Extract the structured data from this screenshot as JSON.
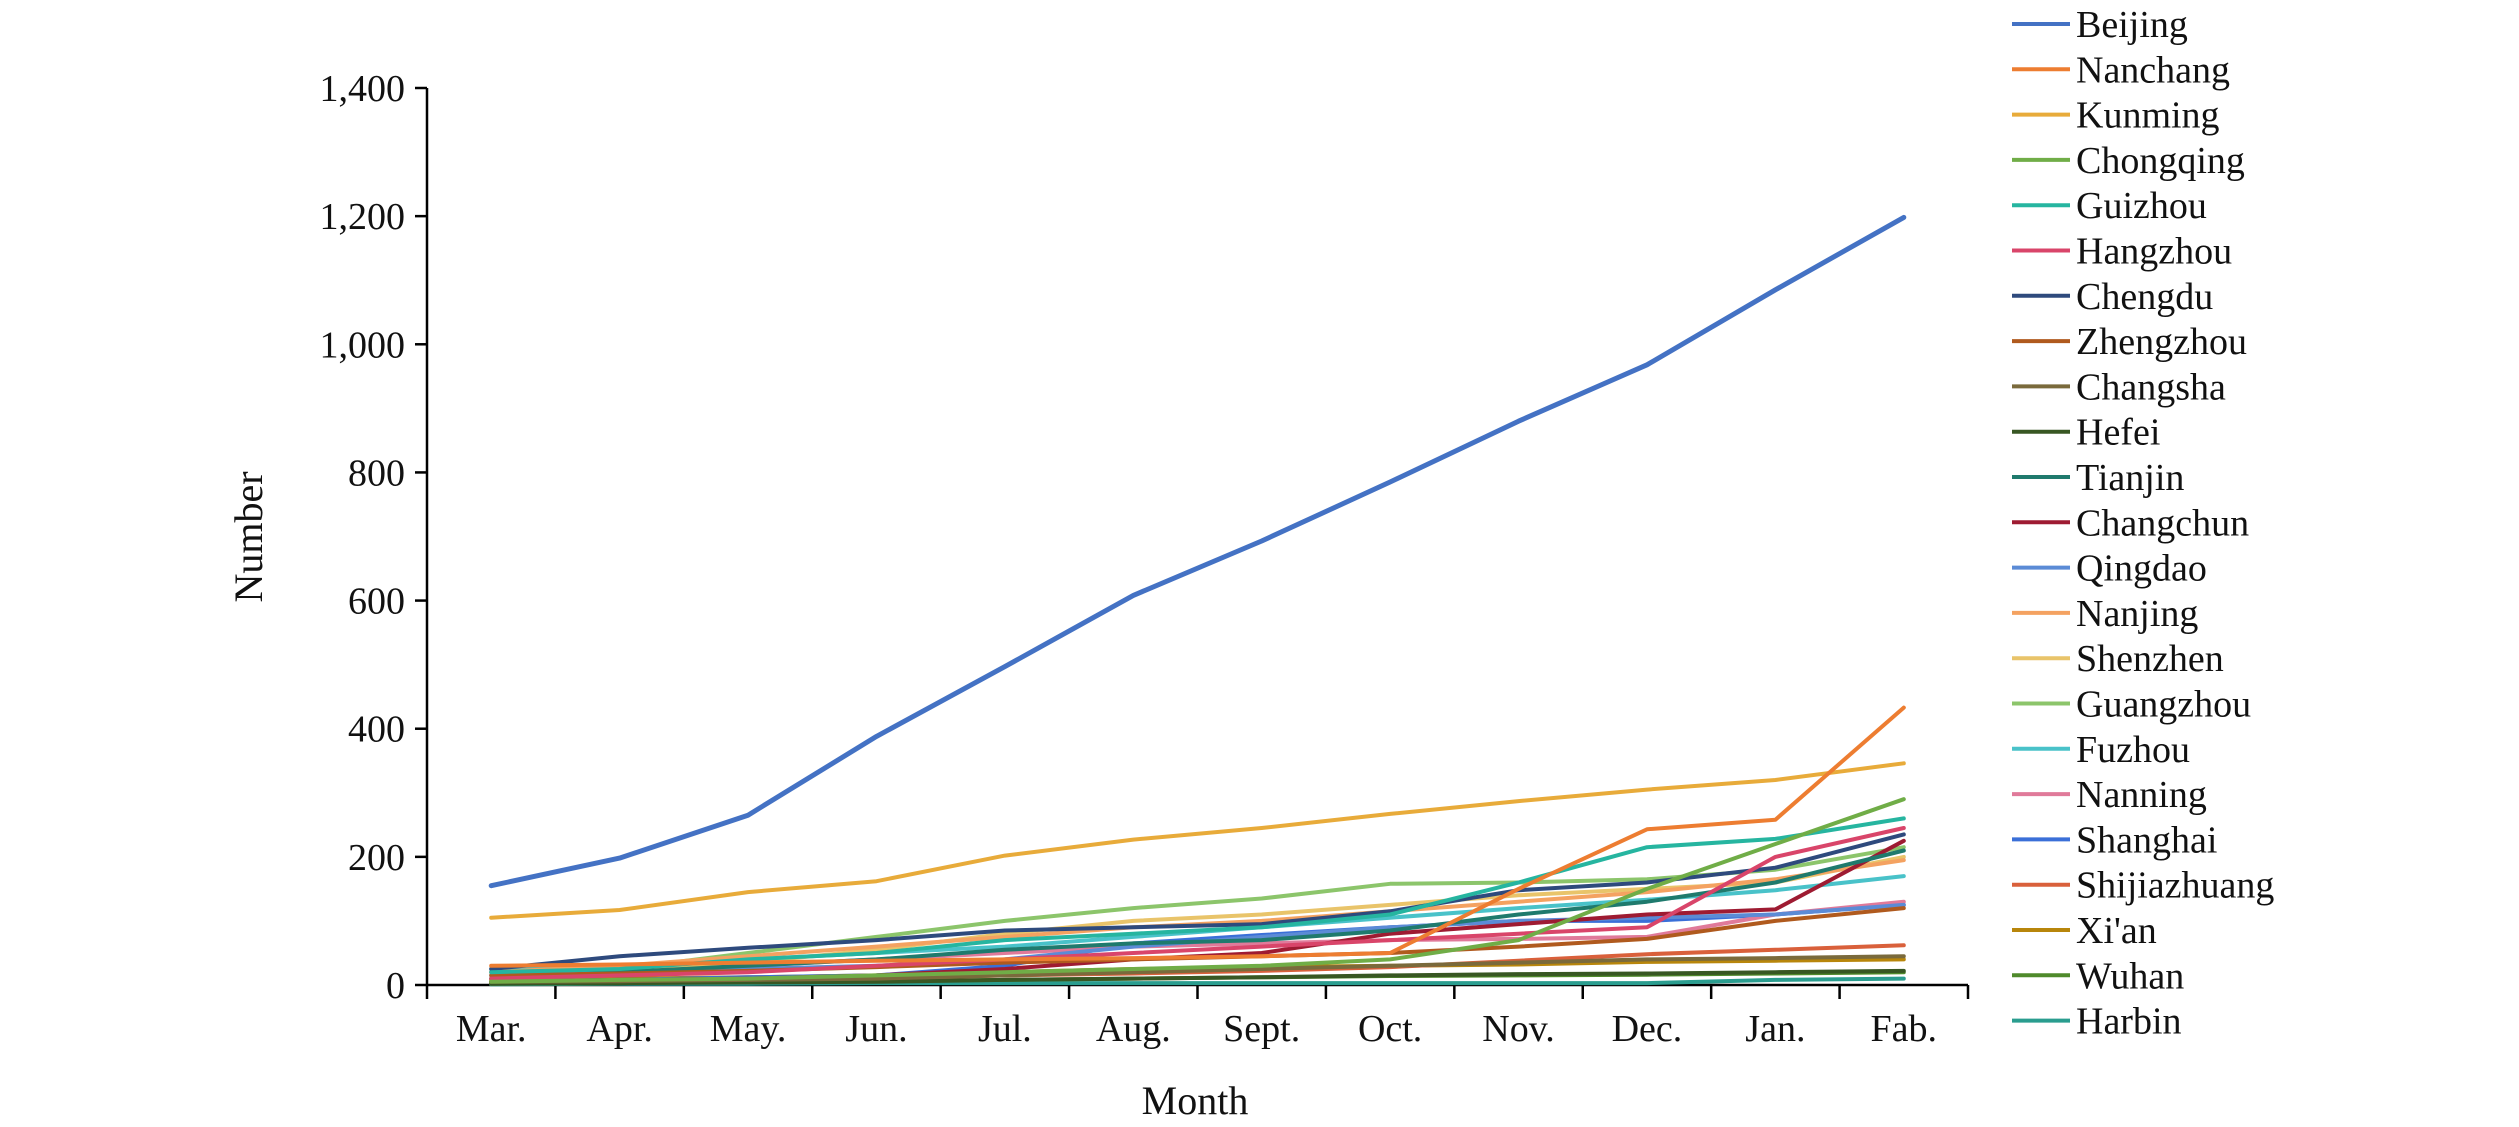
{
  "chart_data": {
    "type": "line",
    "title": "",
    "xlabel": "Month",
    "ylabel": "Number",
    "ylim": [
      0,
      1400
    ],
    "yticks": [
      0,
      200,
      400,
      600,
      800,
      1000,
      1200,
      1400
    ],
    "ytick_labels": [
      "0",
      "200",
      "400",
      "600",
      "800",
      "1,000",
      "1,200",
      "1,400"
    ],
    "grid": false,
    "legend_position": "right",
    "categories": [
      "Mar.",
      "Apr.",
      "May.",
      "Jun.",
      "Jul.",
      "Aug.",
      "Sept.",
      "Oct.",
      "Nov.",
      "Dec.",
      "Jan.",
      "Fab."
    ],
    "series": [
      {
        "name": "Beijing",
        "color": "#4472c4",
        "values": [
          155,
          198,
          265,
          388,
          497,
          608,
          693,
          785,
          880,
          968,
          1085,
          1198
        ]
      },
      {
        "name": "Nanchang",
        "color": "#ed7d31",
        "values": [
          30,
          32,
          35,
          38,
          40,
          42,
          45,
          50,
          150,
          243,
          258,
          433
        ]
      },
      {
        "name": "Kunming",
        "color": "#e8ab3a",
        "values": [
          105,
          117,
          145,
          162,
          202,
          227,
          245,
          267,
          287,
          305,
          320,
          346
        ]
      },
      {
        "name": "Chongqing",
        "color": "#70ad47",
        "values": [
          5,
          8,
          10,
          15,
          20,
          25,
          30,
          40,
          70,
          150,
          220,
          290
        ]
      },
      {
        "name": "Guizhou",
        "color": "#26b5a0",
        "values": [
          20,
          25,
          40,
          50,
          70,
          80,
          90,
          110,
          160,
          215,
          228,
          260
        ]
      },
      {
        "name": "Hangzhou",
        "color": "#d9456a",
        "values": [
          10,
          15,
          20,
          30,
          40,
          50,
          60,
          70,
          80,
          90,
          200,
          245
        ]
      },
      {
        "name": "Chengdu",
        "color": "#2e4a7d",
        "values": [
          25,
          45,
          58,
          70,
          85,
          90,
          95,
          115,
          148,
          160,
          183,
          235
        ]
      },
      {
        "name": "Zhengzhou",
        "color": "#b05a1e",
        "values": [
          15,
          18,
          22,
          28,
          35,
          40,
          45,
          50,
          60,
          72,
          100,
          120
        ]
      },
      {
        "name": "Changsha",
        "color": "#7a6a3c",
        "values": [
          5,
          6,
          8,
          10,
          15,
          20,
          25,
          30,
          35,
          40,
          42,
          45
        ]
      },
      {
        "name": "Hefei",
        "color": "#385723",
        "values": [
          2,
          3,
          4,
          5,
          8,
          10,
          12,
          15,
          17,
          18,
          20,
          22
        ]
      },
      {
        "name": "Tianjin",
        "color": "#1f7a6d",
        "values": [
          10,
          20,
          30,
          40,
          55,
          65,
          70,
          85,
          110,
          130,
          160,
          210
        ]
      },
      {
        "name": "Changchun",
        "color": "#9e1b32",
        "values": [
          5,
          8,
          10,
          15,
          25,
          40,
          50,
          80,
          95,
          110,
          118,
          225
        ]
      },
      {
        "name": "Qingdao",
        "color": "#5b8bd6",
        "values": [
          15,
          20,
          25,
          30,
          40,
          60,
          75,
          90,
          100,
          105,
          110,
          125
        ]
      },
      {
        "name": "Nanjing",
        "color": "#f4a261",
        "values": [
          20,
          30,
          45,
          60,
          75,
          90,
          100,
          115,
          130,
          145,
          165,
          195
        ]
      },
      {
        "name": "Shenzhen",
        "color": "#e9c46a",
        "values": [
          8,
          20,
          35,
          55,
          80,
          100,
          110,
          125,
          140,
          150,
          160,
          200
        ]
      },
      {
        "name": "Guangzhou",
        "color": "#8cc56b",
        "values": [
          10,
          25,
          50,
          75,
          100,
          120,
          135,
          158,
          160,
          165,
          180,
          215
        ]
      },
      {
        "name": "Fuzhou",
        "color": "#49c2c9",
        "values": [
          25,
          30,
          40,
          50,
          60,
          75,
          90,
          105,
          120,
          133,
          148,
          170
        ]
      },
      {
        "name": "Nanning",
        "color": "#e07a9a",
        "values": [
          20,
          25,
          30,
          40,
          50,
          60,
          65,
          70,
          72,
          75,
          110,
          130
        ]
      },
      {
        "name": "Shanghai",
        "color": "#3a6fd8",
        "values": [
          5,
          8,
          12,
          15,
          30,
          65,
          78,
          90,
          100,
          100,
          110,
          125
        ]
      },
      {
        "name": "Shijiazhuang",
        "color": "#d9603b",
        "values": [
          3,
          5,
          8,
          10,
          15,
          18,
          22,
          28,
          38,
          48,
          55,
          62
        ]
      },
      {
        "name": "Xi'an",
        "color": "#b8860b",
        "values": [
          8,
          10,
          12,
          15,
          20,
          25,
          28,
          30,
          32,
          36,
          38,
          40
        ]
      },
      {
        "name": "Wuhan",
        "color": "#4f8a2b",
        "values": [
          2,
          3,
          5,
          6,
          8,
          10,
          12,
          14,
          15,
          16,
          18,
          20
        ]
      },
      {
        "name": "Harbin",
        "color": "#2a9d8f",
        "values": [
          1,
          2,
          2,
          3,
          3,
          3,
          3,
          3,
          3,
          3,
          8,
          10
        ]
      }
    ]
  }
}
